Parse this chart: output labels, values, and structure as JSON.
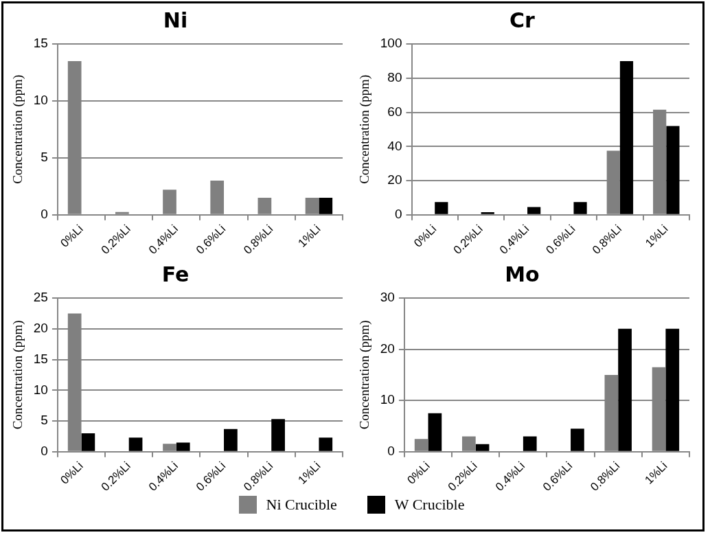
{
  "chart_data": [
    {
      "type": "bar",
      "title": "Ni",
      "ylabel": "Concentration (ppm)",
      "categories": [
        "0%Li",
        "0.2%Li",
        "0.4%Li",
        "0.6%Li",
        "0.8%Li",
        "1%Li"
      ],
      "ylim": [
        0,
        15
      ],
      "yticks": [
        0,
        5,
        10,
        15
      ],
      "grid": "y",
      "series": [
        {
          "color": "#808080",
          "values": [
            13.5,
            0.25,
            2.2,
            3,
            1.5,
            1.5
          ]
        },
        {
          "color": "#000000",
          "values": [
            0,
            0,
            0,
            0,
            0,
            1.5
          ]
        }
      ]
    },
    {
      "type": "bar",
      "title": "Cr",
      "ylabel": "Concentration (ppm)",
      "categories": [
        "0%Li",
        "0.2%Li",
        "0.4%Li",
        "0.6%Li",
        "0.8%Li",
        "1%Li"
      ],
      "ylim": [
        0,
        100
      ],
      "yticks": [
        0,
        20,
        40,
        60,
        80,
        100
      ],
      "grid": "y",
      "series": [
        {
          "color": "#808080",
          "values": [
            0,
            0,
            0,
            0,
            37.5,
            61.5
          ]
        },
        {
          "color": "#000000",
          "values": [
            7.5,
            1.5,
            4.5,
            7.5,
            90,
            52
          ]
        }
      ]
    },
    {
      "type": "bar",
      "title": "Fe",
      "ylabel": "Concentration (ppm)",
      "categories": [
        "0%Li",
        "0.2%Li",
        "0.4%Li",
        "0.6%Li",
        "0.8%Li",
        "1%Li"
      ],
      "ylim": [
        0,
        25
      ],
      "yticks": [
        0,
        5,
        10,
        15,
        20,
        25
      ],
      "grid": "y",
      "series": [
        {
          "color": "#808080",
          "values": [
            22.5,
            0,
            1.3,
            0,
            0,
            0
          ]
        },
        {
          "color": "#000000",
          "values": [
            3,
            2.3,
            1.5,
            3.7,
            5.3,
            2.3
          ]
        }
      ]
    },
    {
      "type": "bar",
      "title": "Mo",
      "ylabel": "Concentration (ppm)",
      "categories": [
        "0%Li",
        "0.2%Li",
        "0.4%Li",
        "0.6%Li",
        "0.8%Li",
        "1%Li"
      ],
      "ylim": [
        0,
        30
      ],
      "yticks": [
        0,
        10,
        20,
        30
      ],
      "grid": "y",
      "legend": "bottom",
      "series": [
        {
          "name": "Ni Crucible",
          "color": "#808080",
          "values": [
            2.5,
            3,
            0,
            0,
            15,
            16.5
          ]
        },
        {
          "name": "W Crucible",
          "color": "#000000",
          "values": [
            7.5,
            1.5,
            3,
            4.5,
            24,
            24
          ]
        }
      ]
    }
  ]
}
